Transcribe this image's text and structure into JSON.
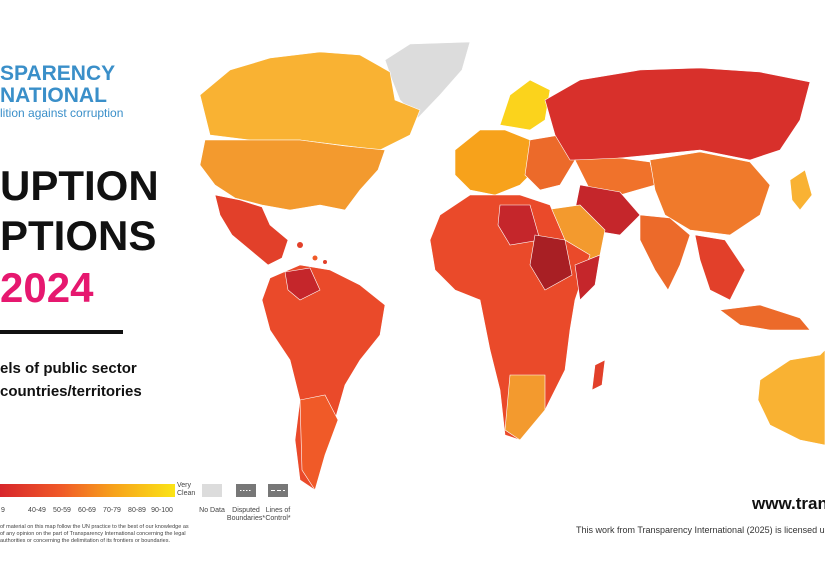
{
  "header": {
    "org_line1": "SPARENCY",
    "org_line2": "NATIONAL",
    "tagline": "lition against corruption"
  },
  "title": {
    "line1": "UPTION",
    "line2": "PTIONS",
    "year": "2024",
    "description_line1": "els of public sector",
    "description_line2": "countries/territories"
  },
  "legend": {
    "ranges": [
      "9",
      "40-49",
      "50-59",
      "60-69",
      "70-79",
      "80-89",
      "90-100"
    ],
    "very": "Very",
    "clean": "Clean",
    "no_data": "No Data",
    "disputed_line1": "Disputed",
    "disputed_line2": "Boundaries*",
    "loc_line1": "Lines of",
    "loc_line2": "Control*"
  },
  "footer": {
    "website": "www.tran",
    "license": "This work from Transparency International (2025) is licensed u",
    "disclaimer": [
      "of material on this map follow the UN practice to the best of our knowledge as",
      "of any opinion on the part of Transparency International concerning the legal",
      "authorities or concerning the delimitation of its frontiers or boundaries."
    ]
  }
}
